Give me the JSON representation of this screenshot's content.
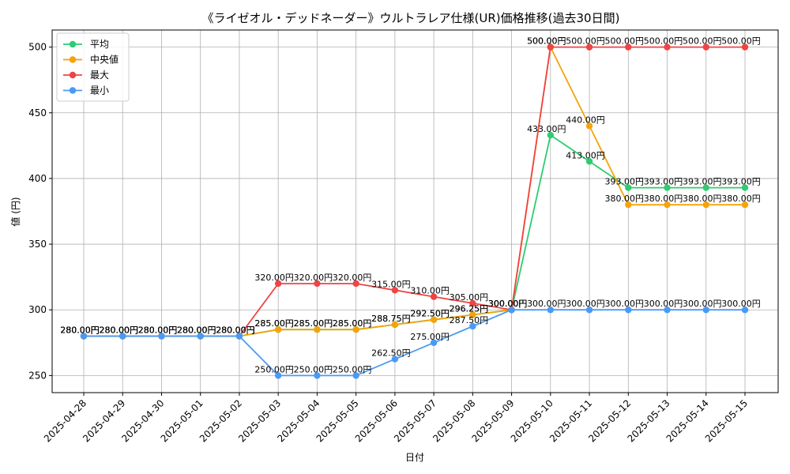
{
  "chart_data": {
    "type": "line",
    "title": "《ライゼオル・デッドネーダー》ウルトラレア仕様(UR)価格推移(過去30日間)",
    "xlabel": "日付",
    "ylabel": "値 (円)",
    "ylim": [
      237,
      513
    ],
    "yticks": [
      250,
      300,
      350,
      400,
      450,
      500
    ],
    "grid": true,
    "legend_position": "top-left",
    "label_suffix": "円",
    "categories": [
      "2025-04-28",
      "2025-04-29",
      "2025-04-30",
      "2025-05-01",
      "2025-05-02",
      "2025-05-03",
      "2025-05-04",
      "2025-05-05",
      "2025-05-06",
      "2025-05-07",
      "2025-05-08",
      "2025-05-09",
      "2025-05-10",
      "2025-05-11",
      "2025-05-12",
      "2025-05-13",
      "2025-05-14",
      "2025-05-15"
    ],
    "series": [
      {
        "name": "平均",
        "color": "#2ecc71",
        "values": [
          280,
          280,
          280,
          280,
          280,
          285,
          285,
          285,
          288.75,
          292.5,
          296.25,
          300,
          433,
          413,
          393,
          393,
          393,
          393
        ]
      },
      {
        "name": "中央値",
        "color": "#f5a30a",
        "values": [
          280,
          280,
          280,
          280,
          280,
          285,
          285,
          285,
          288.75,
          292.5,
          296.25,
          300,
          500,
          440,
          380,
          380,
          380,
          380
        ]
      },
      {
        "name": "最大",
        "color": "#ef4444",
        "values": [
          280,
          280,
          280,
          280,
          280,
          320,
          320,
          320,
          315,
          310,
          305,
          300,
          500,
          500,
          500,
          500,
          500,
          500
        ]
      },
      {
        "name": "最小",
        "color": "#4a9af5",
        "values": [
          280,
          280,
          280,
          280,
          280,
          250,
          250,
          250,
          262.5,
          275,
          287.5,
          300,
          300,
          300,
          300,
          300,
          300,
          300
        ]
      }
    ]
  }
}
